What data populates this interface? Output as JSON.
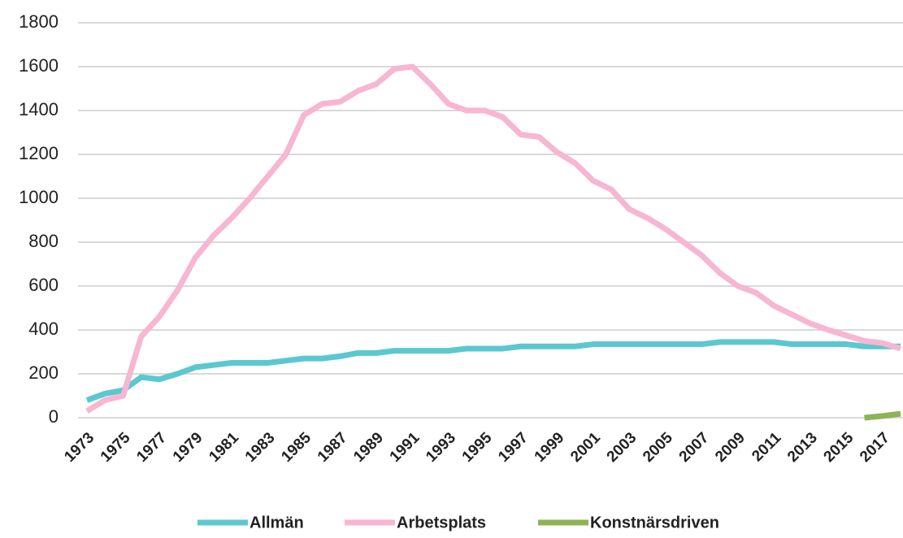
{
  "chart_data": {
    "type": "line",
    "categories": [
      "1973",
      null,
      "1975",
      null,
      "1977",
      null,
      "1979",
      null,
      "1981",
      null,
      "1983",
      null,
      "1985",
      null,
      "1987",
      null,
      "1989",
      null,
      "1991",
      null,
      "1993",
      null,
      "1995",
      null,
      "1997",
      null,
      "1999",
      null,
      "2001",
      null,
      "2003",
      null,
      "2005",
      null,
      "2007",
      null,
      "2009",
      null,
      "2011",
      null,
      "2013",
      null,
      "2015",
      null,
      "2017",
      null
    ],
    "series": [
      {
        "name": "Allmän",
        "color": "#5bc8d0",
        "values": [
          80,
          110,
          125,
          185,
          175,
          200,
          230,
          240,
          250,
          250,
          250,
          260,
          270,
          270,
          280,
          295,
          295,
          305,
          305,
          305,
          305,
          315,
          315,
          315,
          325,
          325,
          325,
          325,
          335,
          335,
          335,
          335,
          335,
          335,
          335,
          345,
          345,
          345,
          345,
          335,
          335,
          335,
          335,
          325,
          325,
          325
        ]
      },
      {
        "name": "Arbetsplats",
        "color": "#f7b6d2",
        "values": [
          30,
          80,
          100,
          370,
          460,
          580,
          730,
          830,
          910,
          1000,
          1100,
          1200,
          1380,
          1430,
          1440,
          1490,
          1520,
          1590,
          1600,
          1520,
          1430,
          1400,
          1400,
          1370,
          1290,
          1280,
          1210,
          1160,
          1080,
          1040,
          950,
          910,
          860,
          800,
          740,
          660,
          600,
          570,
          510,
          470,
          430,
          400,
          375,
          350,
          340,
          315
        ]
      },
      {
        "name": "Konstnärsdriven",
        "color": "#8db356",
        "values": [
          null,
          null,
          null,
          null,
          null,
          null,
          null,
          null,
          null,
          null,
          null,
          null,
          null,
          null,
          null,
          null,
          null,
          null,
          null,
          null,
          null,
          null,
          null,
          null,
          null,
          null,
          null,
          null,
          null,
          null,
          null,
          null,
          null,
          null,
          null,
          null,
          null,
          null,
          null,
          null,
          null,
          null,
          null,
          0,
          8,
          18
        ]
      }
    ],
    "ylim": [
      0,
      1800
    ],
    "yticks": [
      0,
      200,
      400,
      600,
      800,
      1000,
      1200,
      1400,
      1600,
      1800
    ],
    "grid": true,
    "legend": "bottom"
  }
}
